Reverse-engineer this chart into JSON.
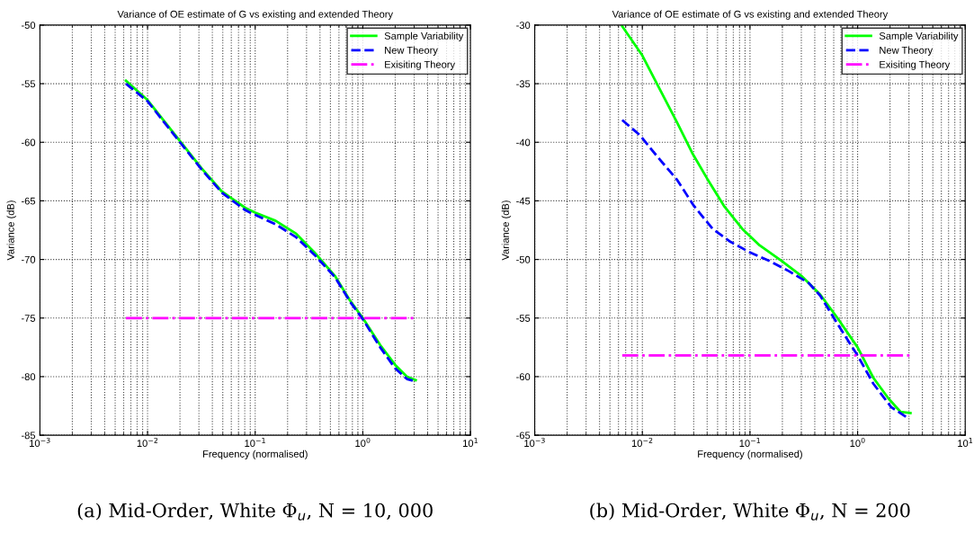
{
  "chart_data": [
    {
      "type": "line",
      "title": "Variance of OE estimate of G vs existing and extended Theory",
      "xlabel": "Frequency (normalised)",
      "ylabel": "Variance (dB)",
      "log": "x",
      "grid": true,
      "legend": "top right",
      "xlim": [
        0.001,
        10
      ],
      "xticks": [
        {
          "value": 0.001,
          "label": "10$^{−3}$"
        },
        {
          "value": 0.01,
          "label": "10$^{−2}$"
        },
        {
          "value": 0.1,
          "label": "10$^{−1}$"
        },
        {
          "value": 1,
          "label": "10$^{0}$"
        },
        {
          "value": 10,
          "label": "10$^{1}$"
        }
      ],
      "ylim": [
        -85,
        -50
      ],
      "yticks": [
        -85,
        -80,
        -75,
        -70,
        -65,
        -60,
        -55,
        -50
      ],
      "annotations": [
        "(a) Mid-Order, White Φ$_{u}$, N = 10, 000"
      ],
      "series": [
        {
          "name": "Sample Variability",
          "color": "#00ff00",
          "line_style": "solid",
          "x": [
            0.0063,
            0.01,
            0.02,
            0.0316,
            0.049,
            0.081,
            0.1,
            0.155,
            0.24,
            0.355,
            0.55,
            0.76,
            1,
            1.45,
            2.0,
            2.57,
            3.1
          ],
          "values": [
            -54.75,
            -56.4,
            -59.9,
            -62.2,
            -64.2,
            -65.6,
            -66.0,
            -66.7,
            -67.8,
            -69.4,
            -71.4,
            -73.5,
            -75.0,
            -77.3,
            -79.0,
            -80.0,
            -80.3
          ]
        },
        {
          "name": "New Theory",
          "color": "#0000ff",
          "line_style": "dashed",
          "x": [
            0.0063,
            0.01,
            0.02,
            0.0316,
            0.049,
            0.081,
            0.1,
            0.155,
            0.24,
            0.355,
            0.55,
            0.76,
            1,
            1.45,
            2.0,
            2.57,
            3.1
          ],
          "values": [
            -55.0,
            -56.5,
            -60.0,
            -62.3,
            -64.3,
            -65.8,
            -66.2,
            -67.0,
            -68.1,
            -69.6,
            -71.5,
            -73.6,
            -75.1,
            -77.5,
            -79.3,
            -80.2,
            -80.4
          ]
        },
        {
          "name": "Exisiting Theory",
          "color": "#ff00ff",
          "line_style": "dashdot",
          "x": [
            0.0063,
            3.1
          ],
          "values": [
            -75,
            -75
          ]
        }
      ]
    },
    {
      "type": "line",
      "title": "Variance of OE estimate of G vs existing and extended Theory",
      "xlabel": "Frequency (normalised)",
      "ylabel": "Variance (dB)",
      "log": "x",
      "grid": true,
      "legend": "top right",
      "xlim": [
        0.001,
        10
      ],
      "xticks": [
        {
          "value": 0.001,
          "label": "10$^{−3}$"
        },
        {
          "value": 0.01,
          "label": "10$^{−2}$"
        },
        {
          "value": 0.1,
          "label": "10$^{−1}$"
        },
        {
          "value": 1,
          "label": "10$^{0}$"
        },
        {
          "value": 10,
          "label": "10$^{1}$"
        }
      ],
      "ylim": [
        -65,
        -30
      ],
      "yticks": [
        -65,
        -60,
        -55,
        -50,
        -45,
        -40,
        -35,
        -30
      ],
      "annotations": [
        "(b) Mid-Order, White Φ$_{u}$, N = 200"
      ],
      "series": [
        {
          "name": "Sample Variability",
          "color": "#00ff00",
          "line_style": "solid",
          "x": [
            0.0065,
            0.01,
            0.014,
            0.021,
            0.029,
            0.04,
            0.058,
            0.085,
            0.123,
            0.195,
            0.3,
            0.45,
            0.65,
            1,
            1.4,
            1.95,
            2.5,
            3.1
          ],
          "values": [
            -30.1,
            -32.6,
            -35.2,
            -38.3,
            -40.9,
            -43.1,
            -45.5,
            -47.4,
            -48.8,
            -50.1,
            -51.4,
            -53.0,
            -55.0,
            -57.5,
            -60.1,
            -61.9,
            -63.0,
            -63.1
          ]
        },
        {
          "name": "New Theory",
          "color": "#0000ff",
          "line_style": "dashed",
          "x": [
            0.0065,
            0.0095,
            0.014,
            0.021,
            0.03,
            0.045,
            0.066,
            0.1,
            0.15,
            0.23,
            0.35,
            0.45,
            0.65,
            1,
            1.4,
            2.05,
            3.0
          ],
          "values": [
            -38.1,
            -39.4,
            -41.3,
            -43.2,
            -45.4,
            -47.4,
            -48.5,
            -49.4,
            -50.1,
            -51.0,
            -52.0,
            -53.1,
            -55.5,
            -58.2,
            -60.6,
            -62.6,
            -63.6
          ]
        },
        {
          "name": "Exisiting Theory",
          "color": "#ff00ff",
          "line_style": "dashdot",
          "x": [
            0.0065,
            3.1
          ],
          "values": [
            -58.2,
            -58.2
          ]
        }
      ]
    }
  ]
}
